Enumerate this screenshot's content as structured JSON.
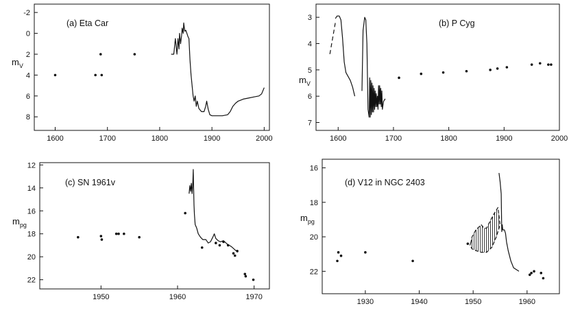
{
  "chart_data": [
    {
      "type": "line",
      "title": "(a)  Eta Car",
      "ylabel": "m",
      "ylabel_sub": "V",
      "xlim": [
        1560,
        2010
      ],
      "ylim": [
        9.3,
        -2.8
      ],
      "y_inverted": true,
      "xticks": [
        1600,
        1700,
        1800,
        1900,
        2000
      ],
      "yticks": [
        -2,
        0,
        2,
        4,
        6,
        8
      ],
      "series": [
        {
          "style": "points",
          "x": [
            1600,
            1677,
            1687,
            1689,
            1752
          ],
          "y": [
            4.0,
            4.0,
            2.0,
            4.0,
            2.0
          ]
        },
        {
          "style": "line",
          "x": [
            1822,
            1827,
            1830,
            1833,
            1835,
            1837,
            1838,
            1840,
            1842,
            1843,
            1845,
            1846,
            1848,
            1850,
            1852,
            1854,
            1856,
            1858,
            1860,
            1862,
            1864,
            1866,
            1868,
            1870,
            1872,
            1875,
            1880,
            1885,
            1888,
            1890,
            1893,
            1896,
            1900,
            1910,
            1920,
            1930,
            1935,
            1940,
            1945,
            1950,
            1960,
            1970,
            1980,
            1990,
            1995,
            2000
          ],
          "y": [
            2.0,
            2.0,
            0.5,
            2.0,
            0.5,
            1.5,
            0.0,
            1.0,
            0.2,
            -0.5,
            0.0,
            -1.0,
            -0.2,
            -0.3,
            0.0,
            0.3,
            0.5,
            2.5,
            4.0,
            5.0,
            6.0,
            6.5,
            6.0,
            7.0,
            6.5,
            7.2,
            7.5,
            7.5,
            7.0,
            6.5,
            7.3,
            7.8,
            7.9,
            7.9,
            7.9,
            7.8,
            7.5,
            7.0,
            6.7,
            6.5,
            6.3,
            6.2,
            6.1,
            6.0,
            5.8,
            5.2
          ]
        }
      ]
    },
    {
      "type": "line",
      "title": "(b)    P Cyg",
      "ylabel": "m",
      "ylabel_sub": "V",
      "xlim": [
        1560,
        2000
      ],
      "ylim": [
        7.3,
        2.5
      ],
      "y_inverted": true,
      "xticks": [
        1600,
        1700,
        1800,
        1900,
        2000
      ],
      "yticks": [
        3,
        4,
        5,
        6,
        7
      ],
      "series": [
        {
          "style": "dashed",
          "x": [
            1585,
            1590,
            1595
          ],
          "y": [
            4.4,
            3.8,
            3.2
          ]
        },
        {
          "style": "line",
          "x": [
            1595,
            1598,
            1602,
            1605,
            1608,
            1611,
            1614,
            1618,
            1622,
            1626,
            1630
          ],
          "y": [
            3.05,
            2.95,
            2.95,
            3.1,
            3.8,
            4.7,
            5.1,
            5.25,
            5.4,
            5.65,
            6.0
          ]
        },
        {
          "style": "line",
          "x": [
            1643,
            1645,
            1648,
            1650,
            1652,
            1654,
            1656,
            1657,
            1658,
            1659,
            1660,
            1661,
            1662,
            1663,
            1664,
            1665,
            1666,
            1667,
            1668,
            1669,
            1670,
            1671,
            1672,
            1673,
            1674,
            1675,
            1676,
            1677,
            1678,
            1679,
            1680,
            1682,
            1685
          ],
          "y": [
            5.8,
            3.5,
            3.0,
            3.1,
            4.0,
            6.5,
            6.8,
            5.3,
            6.8,
            5.4,
            6.7,
            5.5,
            6.6,
            5.6,
            6.6,
            5.7,
            6.5,
            5.8,
            6.4,
            5.9,
            6.4,
            6.0,
            6.5,
            5.6,
            6.3,
            5.6,
            6.3,
            5.7,
            6.4,
            5.8,
            6.5,
            6.2,
            6.1
          ]
        },
        {
          "style": "points",
          "x": [
            1710,
            1750,
            1790,
            1832,
            1875,
            1888,
            1905,
            1950,
            1965,
            1980,
            1985
          ],
          "y": [
            5.3,
            5.15,
            5.1,
            5.05,
            5.0,
            4.95,
            4.9,
            4.8,
            4.75,
            4.8,
            4.8
          ]
        }
      ]
    },
    {
      "type": "line",
      "title": "(c)    SN 1961v",
      "ylabel": "m",
      "ylabel_sub": "pg",
      "xlim": [
        1942,
        1972
      ],
      "ylim": [
        22.8,
        11.8
      ],
      "y_inverted": true,
      "xticks": [
        1950,
        1960,
        1970
      ],
      "yticks": [
        12,
        14,
        16,
        18,
        20,
        22
      ],
      "series": [
        {
          "style": "points",
          "x": [
            1947,
            1950,
            1950.1,
            1952,
            1952.3,
            1953,
            1955,
            1961,
            1963.2,
            1965,
            1965.5,
            1966,
            1966.6,
            1967.3,
            1967.5,
            1967.8,
            1968.8,
            1968.9,
            1969.9
          ],
          "y": [
            18.3,
            18.2,
            18.5,
            18.0,
            18.0,
            18.0,
            18.3,
            16.2,
            19.2,
            18.8,
            19.0,
            18.7,
            19.0,
            19.7,
            19.9,
            19.5,
            21.5,
            21.7,
            22.0
          ]
        },
        {
          "style": "line",
          "x": [
            1961.5,
            1961.6,
            1961.7,
            1961.8,
            1961.9,
            1962.0,
            1962.05,
            1962.1,
            1962.15,
            1962.2,
            1962.3,
            1962.5,
            1962.7,
            1963.0,
            1963.3,
            1963.7,
            1964.0,
            1964.3,
            1964.6,
            1964.8,
            1965.0,
            1965.3,
            1965.6,
            1966.0,
            1966.5,
            1967.0,
            1967.5,
            1967.9
          ],
          "y": [
            14.5,
            13.8,
            14.3,
            13.6,
            14.5,
            13.5,
            12.4,
            14.0,
            15.5,
            16.3,
            17.2,
            17.5,
            18.0,
            18.3,
            18.5,
            18.5,
            18.8,
            18.7,
            18.3,
            18.0,
            18.4,
            18.6,
            18.7,
            18.6,
            18.9,
            19.1,
            19.4,
            19.6
          ]
        }
      ]
    },
    {
      "type": "line",
      "title": "(d)    V12   in   NGC 2403",
      "ylabel": "m",
      "ylabel_sub": "pg",
      "xlim": [
        1922,
        1966
      ],
      "ylim": [
        23.3,
        15.5
      ],
      "y_inverted": true,
      "xticks": [
        1930,
        1940,
        1950,
        1960
      ],
      "yticks": [
        16,
        18,
        20,
        22
      ],
      "series": [
        {
          "style": "points",
          "x": [
            1924.8,
            1925,
            1925.5,
            1930,
            1938.8,
            1949,
            1960.5,
            1960.8,
            1961.3,
            1962.6,
            1963
          ],
          "y": [
            21.4,
            20.9,
            21.1,
            20.9,
            21.4,
            20.4,
            22.2,
            22.1,
            22.0,
            22.1,
            22.4
          ]
        },
        {
          "style": "line",
          "x": [
            1954.8,
            1955,
            1955.2,
            1955.3,
            1955.4,
            1955.5,
            1955.8,
            1956,
            1956.2,
            1956.5,
            1957,
            1957.5,
            1958,
            1958.5
          ],
          "y": [
            16.3,
            16.8,
            17.5,
            19.7,
            19.3,
            19.6,
            19.6,
            19.8,
            20.3,
            20.8,
            21.4,
            21.8,
            21.9,
            22.0
          ]
        },
        {
          "style": "hatched-region",
          "x": [
            1949.6,
            1949.4,
            1949.8,
            1950.5,
            1951.5,
            1952.5,
            1953.5,
            1954.3,
            1955,
            1954.6,
            1954,
            1953.3,
            1952.5,
            1952,
            1951.5,
            1950.5,
            1949.8
          ],
          "y": [
            20.3,
            20.5,
            20.7,
            20.8,
            20.9,
            20.9,
            20.6,
            20.0,
            19.3,
            18.3,
            18.6,
            19.0,
            19.5,
            19.5,
            19.3,
            19.6,
            20.0
          ]
        }
      ]
    }
  ]
}
